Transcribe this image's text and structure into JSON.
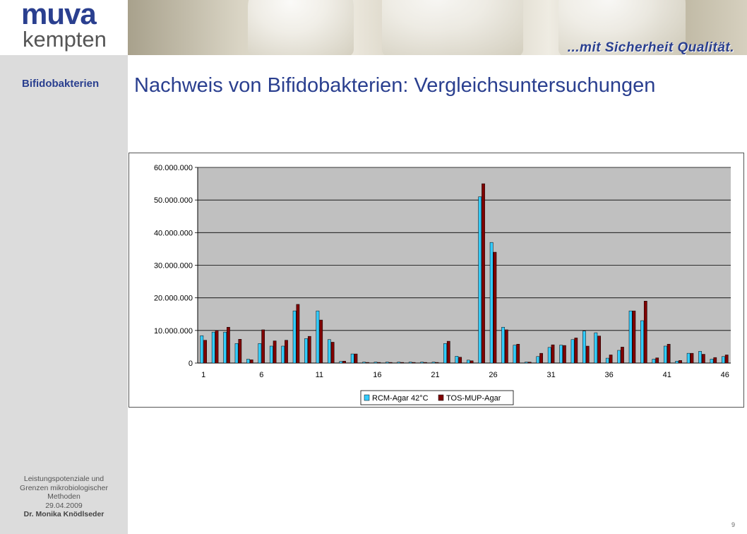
{
  "header": {
    "logo_line1": "muva",
    "logo_line2": "kempten",
    "slogan": "...mit Sicherheit Qualität."
  },
  "sidebar": {
    "section_label": "Bifidobakterien",
    "footer": {
      "line1": "Leistungspotenziale und",
      "line2": "Grenzen mikrobiologischer",
      "line3": "Methoden",
      "date": "29.04.2009",
      "author": "Dr. Monika Knödlseder"
    }
  },
  "main": {
    "title": "Nachweis von Bifidobakterien: Vergleichsuntersuchungen"
  },
  "page_number": "9",
  "colors": {
    "brand_blue": "#2a3f8f",
    "series1": "#33ccff",
    "series2": "#800000",
    "plot_bg": "#c0c0c0"
  },
  "chart_data": {
    "type": "bar",
    "title": "",
    "xlabel": "",
    "ylabel": "",
    "ylim": [
      0,
      60000000
    ],
    "y_ticks": [
      0,
      10000000,
      20000000,
      30000000,
      40000000,
      50000000,
      60000000
    ],
    "y_tick_labels": [
      "0",
      "10.000.000",
      "20.000.000",
      "30.000.000",
      "40.000.000",
      "50.000.000",
      "60.000.000"
    ],
    "categories": [
      "1",
      "2",
      "3",
      "4",
      "5",
      "6",
      "7",
      "8",
      "9",
      "10",
      "11",
      "12",
      "13",
      "14",
      "15",
      "16",
      "17",
      "18",
      "19",
      "20",
      "21",
      "22",
      "23",
      "24",
      "25",
      "26",
      "27",
      "28",
      "29",
      "30",
      "31",
      "32",
      "33",
      "34",
      "35",
      "36",
      "37",
      "38",
      "39",
      "40",
      "41",
      "42",
      "43",
      "44",
      "45",
      "46"
    ],
    "x_tick_labels_shown": [
      "1",
      "6",
      "11",
      "16",
      "21",
      "26",
      "31",
      "36",
      "41",
      "46"
    ],
    "grid": true,
    "legend_position": "bottom",
    "series": [
      {
        "name": "RCM-Agar 42°C",
        "values": [
          8400000,
          9500000,
          9500000,
          6000000,
          1200000,
          6000000,
          5200000,
          5200000,
          16000000,
          7500000,
          16000000,
          7200000,
          500000,
          2800000,
          300000,
          300000,
          300000,
          300000,
          300000,
          300000,
          300000,
          6000000,
          2100000,
          900000,
          51000000,
          37000000,
          11000000,
          5500000,
          300000,
          2000000,
          4800000,
          5500000,
          7200000,
          9800000,
          9300000,
          1500000,
          3900000,
          16000000,
          13000000,
          1200000,
          5200000,
          600000,
          3000000,
          3600000,
          1200000,
          2000000
        ]
      },
      {
        "name": "TOS-MUP-Agar",
        "values": [
          7000000,
          10000000,
          11000000,
          7300000,
          1000000,
          10200000,
          6800000,
          7000000,
          18000000,
          8200000,
          13200000,
          6400000,
          600000,
          2800000,
          200000,
          200000,
          200000,
          200000,
          200000,
          200000,
          200000,
          6700000,
          1800000,
          700000,
          55000000,
          34000000,
          10200000,
          5800000,
          300000,
          3000000,
          5600000,
          5400000,
          7700000,
          5200000,
          8300000,
          2500000,
          4900000,
          16000000,
          19000000,
          1600000,
          5800000,
          800000,
          3000000,
          2700000,
          1700000,
          2500000
        ]
      }
    ]
  }
}
